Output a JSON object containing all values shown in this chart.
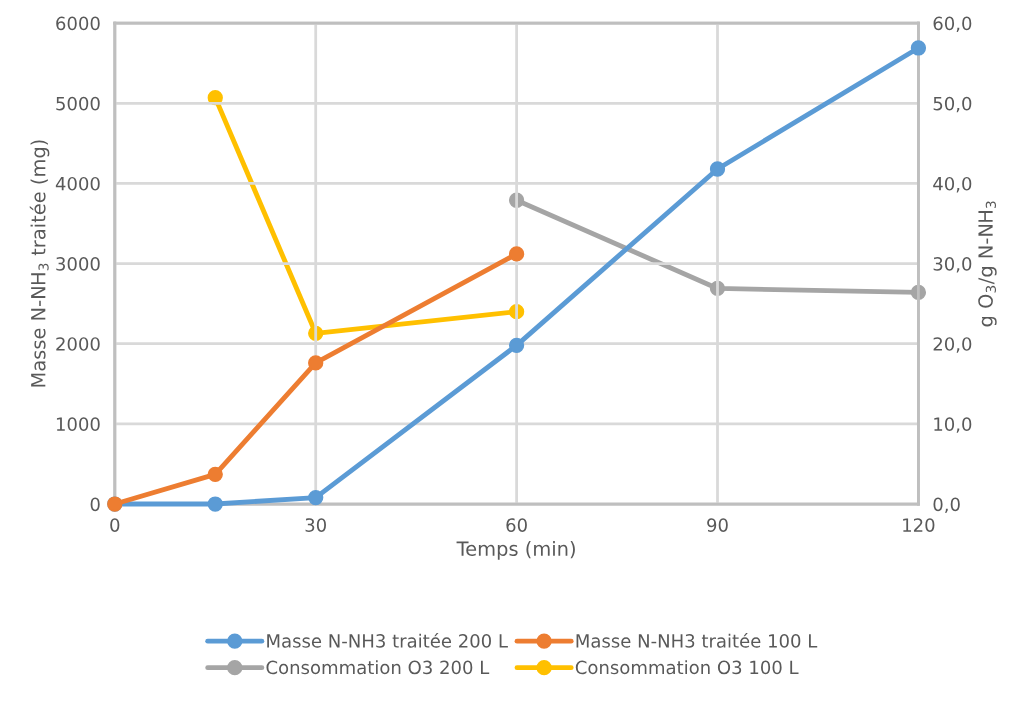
{
  "chart_data": {
    "type": "line",
    "xlabel": "Temps (min)",
    "ylabel": "Masse N-NH$_{3}$ traitée (mg)",
    "y2label": "g O$_{3}$/g N-NH$_{3}$",
    "xlim": [
      0,
      120
    ],
    "xticks": [
      0,
      30,
      60,
      90,
      120
    ],
    "ylim": [
      0,
      6000
    ],
    "yticks": [
      0,
      1000,
      2000,
      3000,
      4000,
      5000,
      6000
    ],
    "y2lim": [
      0,
      60
    ],
    "y2ticks": [
      {
        "value": 0,
        "label": "0,0"
      },
      {
        "value": 10,
        "label": "10,0"
      },
      {
        "value": 20,
        "label": "20,0"
      },
      {
        "value": 30,
        "label": "30,0"
      },
      {
        "value": 40,
        "label": "40,0"
      },
      {
        "value": 50,
        "label": "50,0"
      },
      {
        "value": 60,
        "label": "60,0"
      }
    ],
    "grid": true,
    "legend": "bottom",
    "marker": "circle",
    "line_style": "solid",
    "series": [
      {
        "name": "Masse N-NH3 traitée 200 L",
        "color": "#5b9bd5",
        "x": [
          0,
          15,
          30,
          60,
          90,
          120
        ],
        "values": [
          0,
          0,
          80,
          1980,
          4180,
          5690
        ]
      },
      {
        "name": "Masse N-NH3 traitée 100 L",
        "color": "#ed7d31",
        "x": [
          0,
          15,
          30,
          60
        ],
        "values": [
          0,
          370,
          1760,
          3120
        ]
      },
      {
        "name": "Consommation O3 200 L",
        "color": "#a5a5a5",
        "axis": "y2",
        "x": [
          60,
          90,
          120
        ],
        "values": [
          37.9,
          26.9,
          26.4
        ]
      },
      {
        "name": "Consommation O3 100 L",
        "color": "#ffc000",
        "axis": "y2",
        "x": [
          15,
          30,
          60
        ],
        "values": [
          50.7,
          21.3,
          24.0
        ]
      }
    ]
  }
}
